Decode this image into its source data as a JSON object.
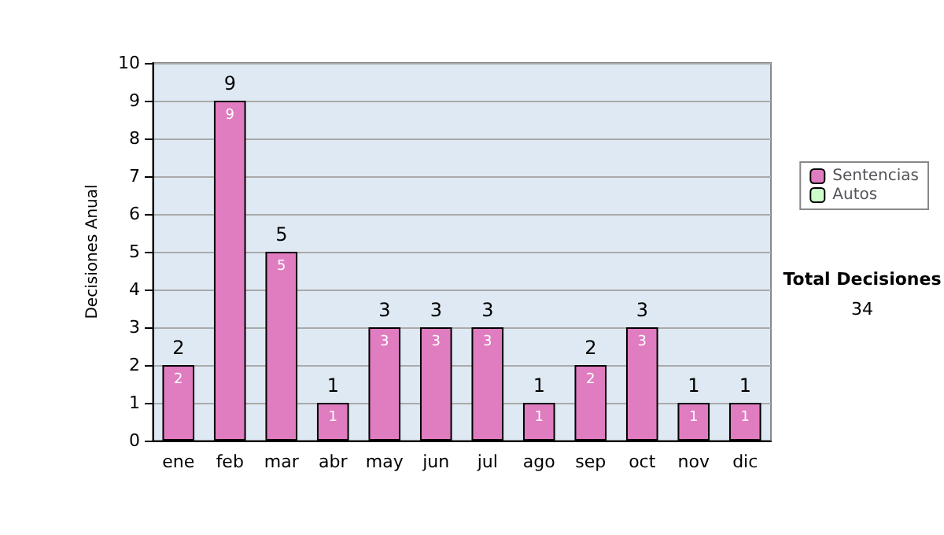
{
  "chart_data": {
    "type": "bar",
    "stacked": true,
    "ylabel": "Decisiones Anual",
    "categories": [
      "ene",
      "feb",
      "mar",
      "abr",
      "may",
      "jun",
      "jul",
      "ago",
      "sep",
      "oct",
      "nov",
      "dic"
    ],
    "series": [
      {
        "name": "Sentencias",
        "color": "#e07cc0",
        "values": [
          2,
          9,
          5,
          1,
          3,
          3,
          3,
          1,
          2,
          3,
          1,
          1
        ],
        "value_labels": [
          "2",
          "9",
          "5",
          "1",
          "3",
          "3",
          "3",
          "1",
          "2",
          "3",
          "1",
          "1"
        ]
      },
      {
        "name": "Autos",
        "color": "#ccffcc",
        "values": [
          0,
          0,
          0,
          0,
          0,
          0,
          0,
          0,
          0,
          0,
          0,
          0
        ]
      }
    ],
    "totals": [
      "2",
      "9",
      "5",
      "1",
      "3",
      "3",
      "3",
      "1",
      "2",
      "3",
      "1",
      "1"
    ],
    "ylim": [
      0,
      10
    ],
    "yticks": [
      0,
      1,
      2,
      3,
      4,
      5,
      6,
      7,
      8,
      9,
      10
    ],
    "grid": "y",
    "legend": "right",
    "annotations": [
      "Total Decisiones",
      "34"
    ]
  }
}
